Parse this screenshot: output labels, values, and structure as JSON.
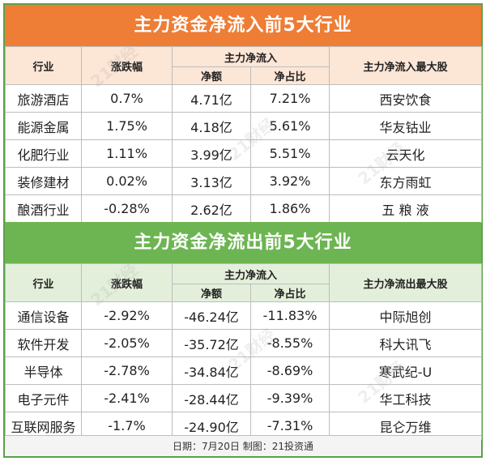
{
  "inflow": {
    "title": "主力资金净流入前5大行业",
    "headers": {
      "industry": "行业",
      "change": "涨跌幅",
      "flow_group": "主力净流入",
      "amount": "净额",
      "ratio": "净占比",
      "top_stock": "主力净流入最大股"
    },
    "rows": [
      {
        "industry": "旅游酒店",
        "change": "0.7%",
        "amount": "4.71亿",
        "ratio": "7.21%",
        "stock": "西安饮食"
      },
      {
        "industry": "能源金属",
        "change": "1.75%",
        "amount": "4.18亿",
        "ratio": "5.61%",
        "stock": "华友钴业"
      },
      {
        "industry": "化肥行业",
        "change": "1.11%",
        "amount": "3.99亿",
        "ratio": "5.51%",
        "stock": "云天化"
      },
      {
        "industry": "装修建材",
        "change": "0.02%",
        "amount": "3.13亿",
        "ratio": "3.92%",
        "stock": "东方雨虹"
      },
      {
        "industry": "酿酒行业",
        "change": "-0.28%",
        "amount": "2.62亿",
        "ratio": "1.86%",
        "stock": "五 粮 液"
      }
    ]
  },
  "outflow": {
    "title": "主力资金净流出前5大行业",
    "headers": {
      "industry": "行业",
      "change": "涨跌幅",
      "flow_group": "主力净流入",
      "amount": "净额",
      "ratio": "净占比",
      "top_stock": "主力净流出最大股"
    },
    "rows": [
      {
        "industry": "通信设备",
        "change": "-2.92%",
        "amount": "-46.24亿",
        "ratio": "-11.83%",
        "stock": "中际旭创"
      },
      {
        "industry": "软件开发",
        "change": "-2.05%",
        "amount": "-35.72亿",
        "ratio": "-8.55%",
        "stock": "科大讯飞"
      },
      {
        "industry": "半导体",
        "change": "-2.78%",
        "amount": "-34.84亿",
        "ratio": "-8.69%",
        "stock": "寒武纪-U"
      },
      {
        "industry": "电子元件",
        "change": "-2.41%",
        "amount": "-28.44亿",
        "ratio": "-9.39%",
        "stock": "华工科技"
      },
      {
        "industry": "互联网服务",
        "change": "-1.7%",
        "amount": "-24.90亿",
        "ratio": "-7.31%",
        "stock": "昆仑万维"
      }
    ]
  },
  "footer": "日期：7月20日 制图：21投资通",
  "watermark": "21财经",
  "colors": {
    "inflow_banner": "#ee7d35",
    "inflow_header": "#fce6d6",
    "outflow_banner": "#6db553",
    "outflow_header": "#e3efda",
    "border": "#5aa14a"
  }
}
